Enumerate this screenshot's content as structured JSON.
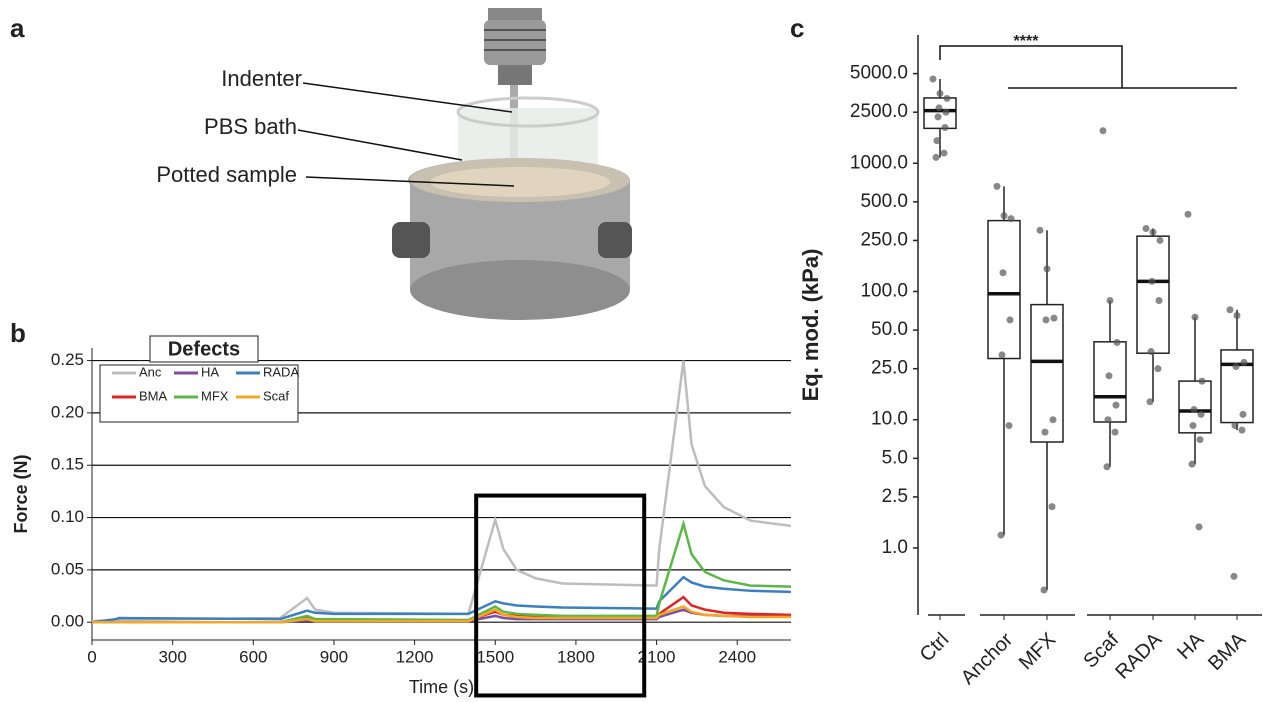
{
  "figure": {
    "panel_labels": [
      "a",
      "b",
      "c"
    ],
    "photo_labels": [
      "Indenter",
      "PBS bath",
      "Potted sample"
    ]
  },
  "chart_data": [
    {
      "type": "line",
      "x_label": "Time (s)",
      "y_label": "Force (N)",
      "legend_title": "Defects",
      "x": [
        0,
        90,
        100,
        700,
        800,
        830,
        900,
        1400,
        1500,
        1530,
        1580,
        1650,
        1750,
        2100,
        2110,
        2200,
        2230,
        2280,
        2350,
        2450,
        2600
      ],
      "series": [
        {
          "name": "Anc",
          "color": "#bdbdbd",
          "values": [
            0.001,
            0.002,
            0.002,
            0.004,
            0.023,
            0.012,
            0.009,
            0.008,
            0.098,
            0.07,
            0.05,
            0.042,
            0.037,
            0.035,
            0.07,
            0.25,
            0.17,
            0.13,
            0.11,
            0.097,
            0.092
          ]
        },
        {
          "name": "HA",
          "color": "#7b4fa0",
          "values": [
            0,
            0,
            0,
            0,
            0.002,
            0.001,
            0.001,
            0.001,
            0.006,
            0.004,
            0.003,
            0.003,
            0.003,
            0.003,
            0.005,
            0.012,
            0.009,
            0.007,
            0.006,
            0.006,
            0.006
          ]
        },
        {
          "name": "RADA",
          "color": "#3a7fc1",
          "values": [
            0,
            0.003,
            0.004,
            0.003,
            0.011,
            0.009,
            0.008,
            0.008,
            0.02,
            0.018,
            0.016,
            0.015,
            0.014,
            0.013,
            0.02,
            0.043,
            0.038,
            0.034,
            0.032,
            0.03,
            0.029
          ]
        },
        {
          "name": "BMA",
          "color": "#e02424",
          "values": [
            0,
            0,
            0,
            0,
            0.004,
            0.002,
            0.002,
            0.002,
            0.01,
            0.007,
            0.006,
            0.005,
            0.005,
            0.005,
            0.008,
            0.024,
            0.016,
            0.012,
            0.009,
            0.008,
            0.007
          ]
        },
        {
          "name": "MFX",
          "color": "#5ab946",
          "values": [
            0,
            0,
            0,
            0,
            0.006,
            0.003,
            0.003,
            0.002,
            0.015,
            0.01,
            0.008,
            0.007,
            0.006,
            0.006,
            0.018,
            0.094,
            0.065,
            0.048,
            0.04,
            0.035,
            0.034
          ]
        },
        {
          "name": "Scaf",
          "color": "#f5a623",
          "values": [
            0,
            0,
            0,
            0,
            0.003,
            0.001,
            0.001,
            0.001,
            0.012,
            0.007,
            0.005,
            0.004,
            0.004,
            0.004,
            0.007,
            0.015,
            0.01,
            0.007,
            0.006,
            0.005,
            0.005
          ]
        }
      ],
      "xlim": [
        0,
        2600
      ],
      "xticks": [
        0,
        300,
        600,
        900,
        1200,
        1500,
        1800,
        2100,
        2400
      ],
      "ylim": [
        -0.017,
        0.262
      ],
      "yticks": [
        {
          "value": 0,
          "label": "0.00"
        },
        {
          "value": 0.05,
          "label": "0.05"
        },
        {
          "value": 0.1,
          "label": "0.10"
        },
        {
          "value": 0.15,
          "label": "0.15"
        },
        {
          "value": 0.2,
          "label": "0.20"
        },
        {
          "value": 0.25,
          "label": "0.25"
        }
      ],
      "grid": true,
      "highlight": {
        "x": [
          1429,
          2054
        ],
        "y": [
          0.121,
          -0.07
        ]
      }
    },
    {
      "type": "box",
      "y_label": "Eq. mod. (kPa)",
      "log_scale": true,
      "significance": "****",
      "categories": [
        "Ctrl",
        "Anchor",
        "MFX",
        "Scaf",
        "RADA",
        "HA",
        "BMA"
      ],
      "boxes": [
        {
          "whisker_low": 1110,
          "q1": 1870,
          "median": 2570,
          "q3": 3230,
          "whisker_high": 4540,
          "points": [
            4540,
            3500,
            3200,
            2700,
            2500,
            2300,
            1900,
            1500,
            1200,
            1110
          ]
        },
        {
          "whisker_low": 1.26,
          "q1": 30,
          "median": 96,
          "q3": 357,
          "whisker_high": 660,
          "points": [
            660,
            390,
            370,
            140,
            60,
            32,
            9,
            1.26
          ]
        },
        {
          "whisker_low": 0.47,
          "q1": 6.7,
          "median": 28.5,
          "q3": 79,
          "whisker_high": 300,
          "points": [
            300,
            150,
            62,
            60,
            10,
            8,
            2.1,
            0.47
          ]
        },
        {
          "whisker_low": 4.3,
          "q1": 9.6,
          "median": 15.1,
          "q3": 40.5,
          "whisker_high": 85,
          "points": [
            1790,
            85,
            40,
            22,
            13,
            10,
            8,
            4.3
          ]
        },
        {
          "whisker_low": 13.8,
          "q1": 33,
          "median": 120,
          "q3": 270,
          "whisker_high": 310,
          "points": [
            310,
            290,
            250,
            120,
            85,
            34,
            25,
            13.8
          ]
        },
        {
          "whisker_low": 4.5,
          "q1": 7.9,
          "median": 11.7,
          "q3": 20,
          "whisker_high": 63,
          "points": [
            400,
            63,
            20,
            12,
            11,
            9,
            7,
            4.5,
            1.46
          ]
        },
        {
          "whisker_low": 8.3,
          "q1": 9.5,
          "median": 27,
          "q3": 35,
          "whisker_high": 72,
          "points": [
            72,
            65,
            28,
            26,
            11,
            9,
            8.3,
            0.6
          ]
        }
      ],
      "ylim": [
        0.3,
        10000
      ],
      "yticks": [
        {
          "value": 1,
          "label": "1.0"
        },
        {
          "value": 2.5,
          "label": "2.5"
        },
        {
          "value": 5,
          "label": "5.0"
        },
        {
          "value": 10,
          "label": "10.0"
        },
        {
          "value": 25,
          "label": "25.0"
        },
        {
          "value": 50,
          "label": "50.0"
        },
        {
          "value": 100,
          "label": "100.0"
        },
        {
          "value": 250,
          "label": "250.0"
        },
        {
          "value": 500,
          "label": "500.0"
        },
        {
          "value": 1000,
          "label": "1000.0"
        },
        {
          "value": 2500,
          "label": "2500.0"
        },
        {
          "value": 5000,
          "label": "5000.0"
        }
      ]
    }
  ]
}
